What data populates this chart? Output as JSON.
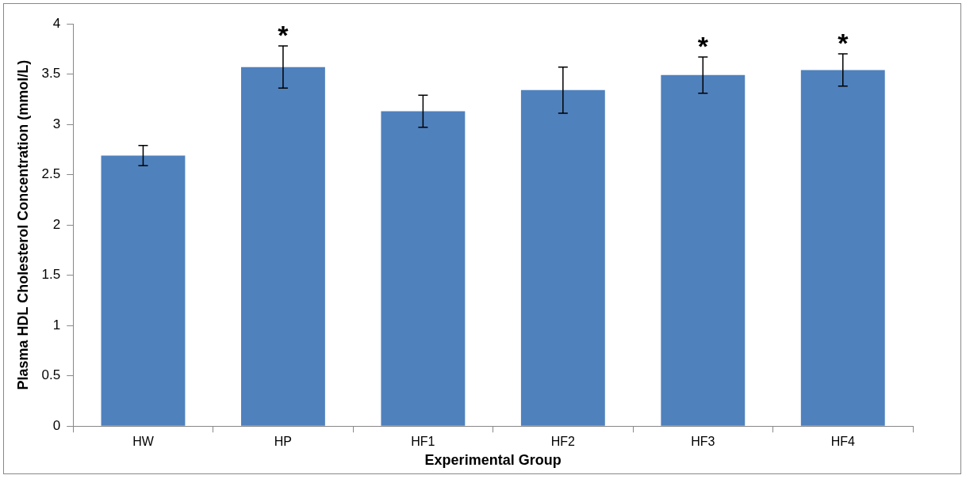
{
  "chart_data": {
    "type": "bar",
    "xlabel": "Experimental Group",
    "ylabel": "Plasma HDL Cholesterol Concentration (mmol/L)",
    "categories": [
      "HW",
      "HP",
      "HF1",
      "HF2",
      "HF3",
      "HF4"
    ],
    "values": [
      2.69,
      3.57,
      3.13,
      3.34,
      3.49,
      3.54
    ],
    "errors": [
      0.1,
      0.21,
      0.16,
      0.23,
      0.18,
      0.16
    ],
    "color": "#4f81bd",
    "ylim": [
      0,
      4
    ],
    "yticks": [
      0,
      0.5,
      1,
      1.5,
      2,
      2.5,
      3,
      3.5,
      4
    ],
    "grid": false,
    "legend": false,
    "annotations": [
      {
        "text": "*",
        "x": "HP",
        "y": 3.78
      },
      {
        "text": "*",
        "x": "HF3",
        "y": 3.67
      },
      {
        "text": "*",
        "x": "HF4",
        "y": 3.7
      }
    ]
  }
}
